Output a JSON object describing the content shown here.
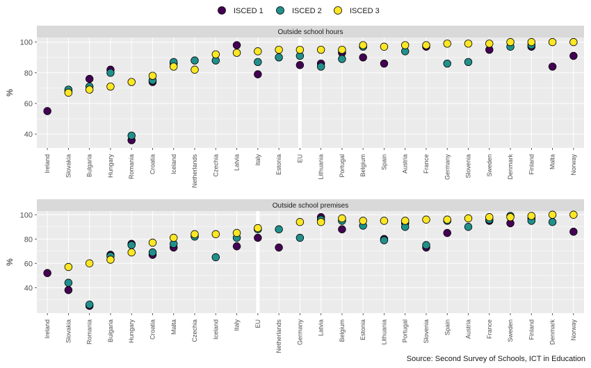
{
  "chart_data": [
    {
      "type": "scatter",
      "title": "Outside school hours",
      "ylabel": "%",
      "ylim": [
        31,
        103
      ],
      "yticks": [
        40,
        60,
        80,
        100
      ],
      "highlight_category": "EU",
      "categories": [
        "Ireland",
        "Slovakia",
        "Bulgaria",
        "Hungary",
        "Romania",
        "Croatia",
        "Iceland",
        "Netherlands",
        "Czechia",
        "Latvia",
        "Italy",
        "Estonia",
        "EU",
        "Lithuania",
        "Portugal",
        "Belgium",
        "Spain",
        "Austria",
        "France",
        "Germany",
        "Slovenia",
        "Sweden",
        "Denmark",
        "Finland",
        "Malta",
        "Norway"
      ],
      "series": [
        {
          "name": "ISCED 1",
          "values": [
            55,
            68,
            76,
            82,
            36,
            74,
            86,
            null,
            null,
            98,
            79,
            null,
            85,
            86,
            93,
            90,
            86,
            null,
            97,
            null,
            null,
            95,
            null,
            97,
            84,
            91
          ]
        },
        {
          "name": "ISCED 2",
          "values": [
            null,
            69,
            71,
            80,
            39,
            75,
            87,
            88,
            88,
            null,
            87,
            90,
            91,
            84,
            89,
            97,
            null,
            94,
            null,
            86,
            87,
            null,
            97,
            98,
            null,
            null
          ]
        },
        {
          "name": "ISCED 3",
          "values": [
            null,
            67,
            69,
            71,
            74,
            78,
            84,
            82,
            92,
            93,
            94,
            95,
            95,
            95,
            95,
            98,
            97,
            98,
            98,
            99,
            99,
            99,
            100,
            100,
            100,
            100
          ]
        }
      ]
    },
    {
      "type": "scatter",
      "title": "Outside school premises",
      "ylabel": "%",
      "ylim": [
        19,
        103
      ],
      "yticks": [
        40,
        60,
        80,
        100
      ],
      "highlight_category": "EU",
      "categories": [
        "Ireland",
        "Slovakia",
        "Romania",
        "Bulgaria",
        "Hungary",
        "Croatia",
        "Malta",
        "Czechia",
        "Iceland",
        "Italy",
        "EU",
        "Netherlands",
        "Germany",
        "Latvia",
        "Belgium",
        "Estonia",
        "Lithuania",
        "Portugal",
        "Slovenia",
        "Spain",
        "Austria",
        "France",
        "Sweden",
        "Finland",
        "Denmark",
        "Norway"
      ],
      "series": [
        {
          "name": "ISCED 1",
          "values": [
            52,
            38,
            25,
            67,
            76,
            67,
            73,
            null,
            null,
            74,
            81,
            73,
            null,
            98,
            88,
            null,
            80,
            93,
            73,
            85,
            null,
            95,
            93,
            97,
            null,
            86
          ]
        },
        {
          "name": "ISCED 2",
          "values": [
            null,
            44,
            26,
            66,
            75,
            69,
            76,
            82,
            65,
            81,
            88,
            88,
            81,
            96,
            95,
            91,
            79,
            90,
            75,
            95,
            90,
            96,
            99,
            95,
            94,
            null
          ]
        },
        {
          "name": "ISCED 3",
          "values": [
            null,
            57,
            60,
            63,
            69,
            77,
            81,
            84,
            84,
            85,
            89,
            null,
            94,
            94,
            97,
            95,
            95,
            95,
            96,
            96,
            97,
            98,
            98,
            99,
            100,
            100
          ]
        }
      ]
    }
  ],
  "legend": {
    "items": [
      {
        "label": "ISCED 1",
        "color": "#440154"
      },
      {
        "label": "ISCED 2",
        "color": "#21908C"
      },
      {
        "label": "ISCED 3",
        "color": "#FDE725"
      }
    ]
  },
  "source": "Source: Second Survey of Schools, ICT in Education",
  "colors": {
    "panel_bg": "#ebebeb",
    "strip_bg": "#d9d9d9",
    "grid": "#ffffff",
    "point_stroke": "#000000"
  }
}
